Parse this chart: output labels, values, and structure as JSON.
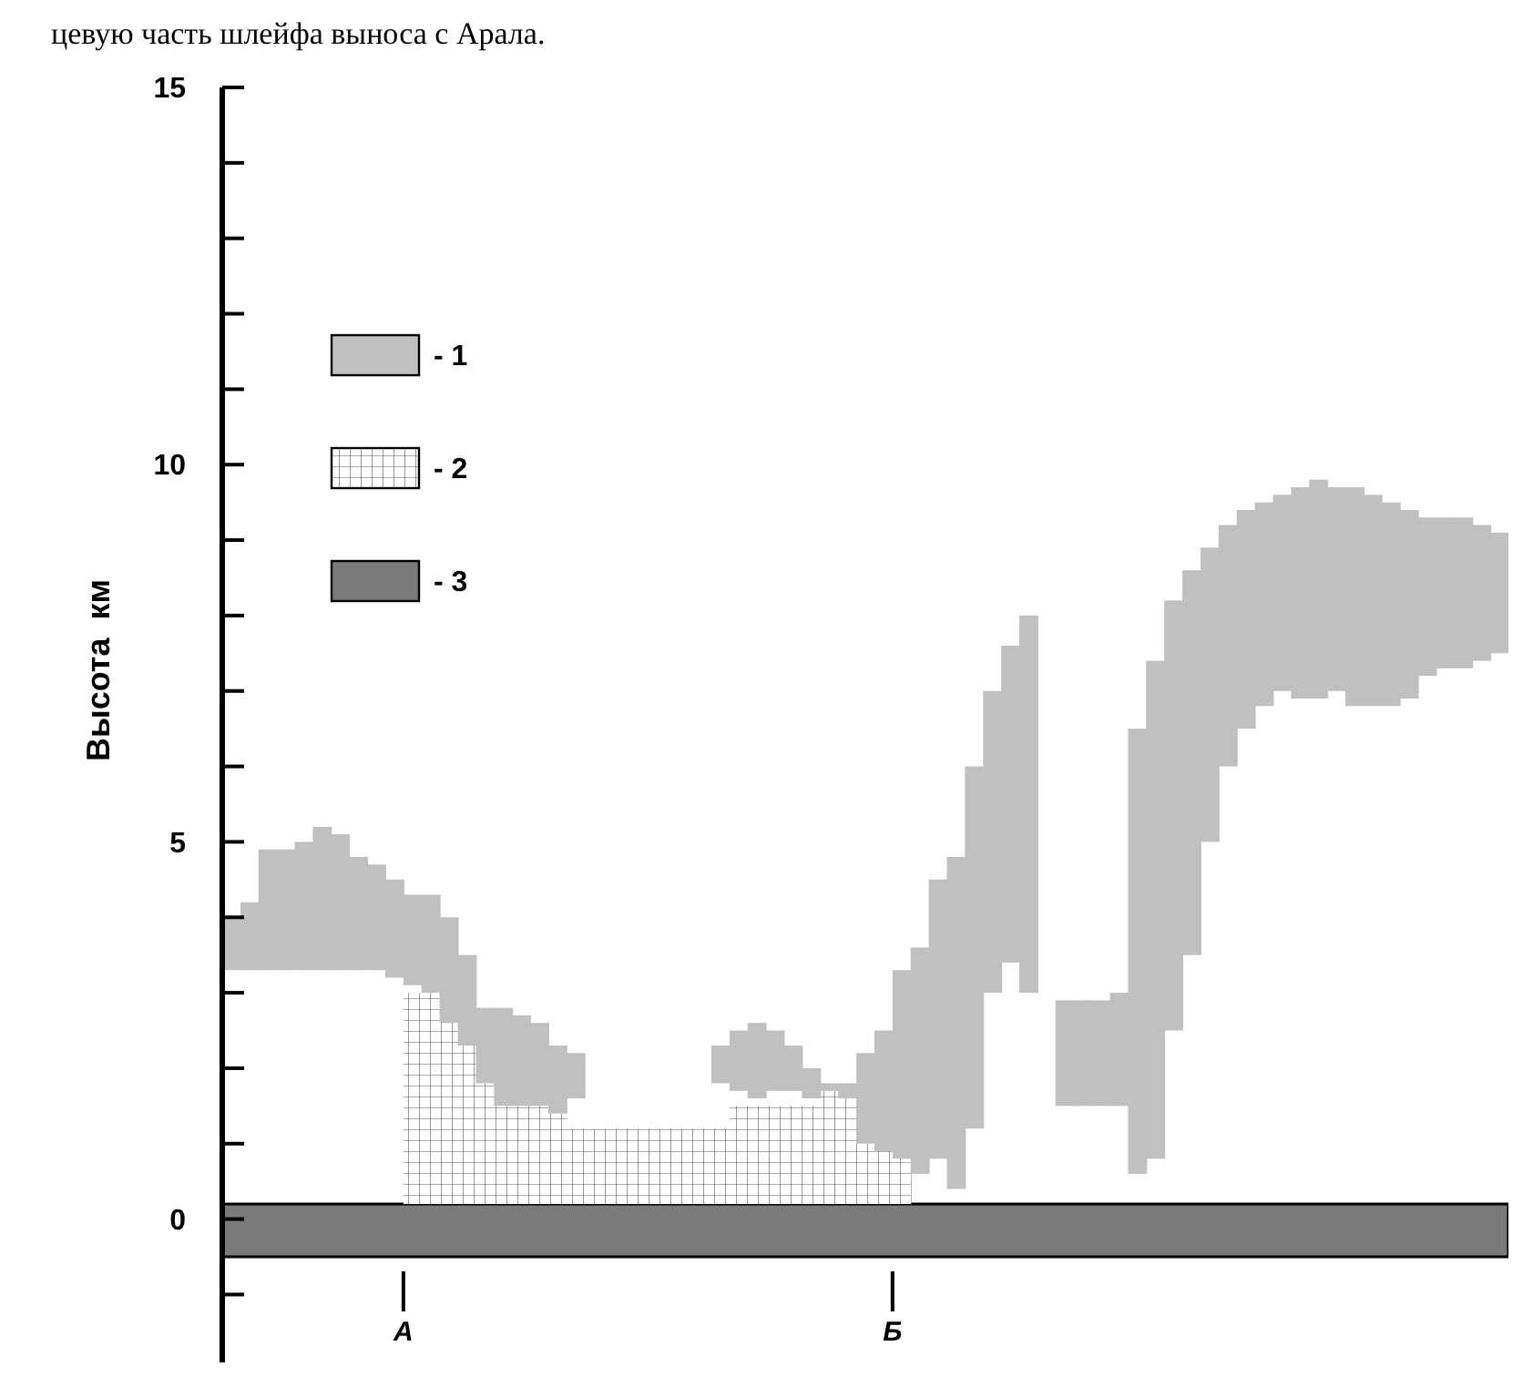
{
  "chart_data": {
    "type": "bar",
    "annotations": [
      "цевую часть шлейфа выноса с Арала."
    ],
    "ylabel": "Высота  км",
    "categories": [
      null,
      null,
      null,
      null,
      null,
      null,
      null,
      null,
      null,
      null,
      "А",
      null,
      null,
      null,
      null,
      null,
      null,
      null,
      null,
      null,
      null,
      null,
      null,
      null,
      null,
      null,
      null,
      null,
      null,
      null,
      null,
      null,
      null,
      null,
      null,
      null,
      null,
      "Б",
      null,
      null,
      null,
      null,
      null,
      null,
      null,
      null,
      null,
      null,
      null,
      null,
      null,
      null,
      null,
      null,
      null,
      null,
      null,
      null,
      null,
      null,
      null,
      null,
      null,
      null,
      null,
      null,
      null,
      null,
      null,
      null,
      null
    ],
    "ylim": [
      -1.9,
      15
    ],
    "yticks": [
      {
        "value": -1,
        "label": null
      },
      0,
      {
        "value": 1,
        "label": null
      },
      {
        "value": 2,
        "label": null
      },
      {
        "value": 3,
        "label": null
      },
      {
        "value": 4,
        "label": null
      },
      5,
      {
        "value": 6,
        "label": null
      },
      {
        "value": 7,
        "label": null
      },
      {
        "value": 8,
        "label": null
      },
      {
        "value": 9,
        "label": null
      },
      10,
      {
        "value": 11,
        "label": null
      },
      {
        "value": 12,
        "label": null
      },
      {
        "value": 13,
        "label": null
      },
      {
        "value": 14,
        "label": null
      },
      15
    ],
    "legend": "top left",
    "grid": false,
    "series": [
      {
        "name": "- 1",
        "color": "#c0c0c0",
        "values": [
          0.7,
          0.9,
          1.6,
          1.6,
          1.7,
          1.9,
          1.8,
          1.5,
          1.4,
          1.3,
          1.2,
          1.3,
          1.4,
          1.2,
          1.0,
          1.3,
          1.2,
          1.1,
          0.9,
          0.6,
          null,
          null,
          null,
          null,
          null,
          null,
          null,
          0.5,
          0.8,
          1.0,
          0.8,
          0.6,
          0.4,
          0.1,
          0.2,
          1.2,
          1.6,
          2.5,
          3.0,
          3.7,
          4.4,
          4.8,
          4.0,
          4.2,
          5.0,
          null,
          1.4,
          1.4,
          1.4,
          1.5,
          5.9,
          6.6,
          5.7,
          5.1,
          3.9,
          3.2,
          2.9,
          2.7,
          2.6,
          2.8,
          2.9,
          2.7,
          2.9,
          2.8,
          2.7,
          2.5,
          2.1,
          2.0,
          2.0,
          1.8,
          1.6
        ],
        "base": [
          3.3,
          3.3,
          3.3,
          3.3,
          3.3,
          3.3,
          3.3,
          3.3,
          3.3,
          3.2,
          3.1,
          3.0,
          2.6,
          2.3,
          1.8,
          1.5,
          1.5,
          1.5,
          1.4,
          1.6,
          null,
          null,
          null,
          null,
          null,
          null,
          null,
          1.8,
          1.7,
          1.6,
          1.7,
          1.7,
          1.6,
          1.7,
          1.6,
          1.0,
          0.9,
          0.8,
          0.6,
          0.8,
          0.4,
          1.2,
          3.0,
          3.4,
          3.0,
          null,
          1.5,
          1.5,
          1.5,
          1.5,
          0.6,
          0.8,
          2.5,
          3.5,
          5.0,
          6.0,
          6.5,
          6.8,
          7.0,
          6.9,
          6.9,
          7.0,
          6.8,
          6.8,
          6.8,
          6.9,
          7.2,
          7.3,
          7.3,
          7.4,
          7.5
        ]
      },
      {
        "name": "- 2",
        "color": "#ffffff",
        "values": [
          null,
          null,
          null,
          null,
          null,
          null,
          null,
          null,
          null,
          null,
          2.8,
          2.8,
          2.4,
          2.1,
          1.6,
          1.3,
          1.3,
          1.3,
          1.2,
          1.0,
          1.0,
          1.0,
          1.0,
          1.0,
          1.0,
          1.0,
          1.0,
          1.0,
          1.3,
          1.3,
          1.3,
          1.3,
          1.3,
          1.5,
          1.4,
          0.8,
          0.7,
          0.6,
          null,
          null,
          null,
          null,
          null,
          null,
          null,
          null,
          null,
          null,
          null,
          null,
          null,
          null,
          null,
          null,
          null,
          null,
          null,
          null,
          null,
          null,
          null,
          null,
          null,
          null,
          null,
          null,
          null,
          null,
          null,
          null,
          null
        ],
        "base": [
          null,
          null,
          null,
          null,
          null,
          null,
          null,
          null,
          null,
          null,
          0.2,
          0.2,
          0.2,
          0.2,
          0.2,
          0.2,
          0.2,
          0.2,
          0.2,
          0.2,
          0.2,
          0.2,
          0.2,
          0.2,
          0.2,
          0.2,
          0.2,
          0.2,
          0.2,
          0.2,
          0.2,
          0.2,
          0.2,
          0.2,
          0.2,
          0.2,
          0.2,
          0.2,
          null,
          null,
          null,
          null,
          null,
          null,
          null,
          null,
          null,
          null,
          null,
          null,
          null,
          null,
          null,
          null,
          null,
          null,
          null,
          null,
          null,
          null,
          null,
          null,
          null,
          null,
          null,
          null,
          null,
          null,
          null,
          null,
          null
        ]
      }
    ],
    "bands": [
      {
        "axis": "y",
        "from": -0.5,
        "to": 0.2,
        "label": "- 3",
        "color": "#7a7a7a"
      }
    ]
  }
}
